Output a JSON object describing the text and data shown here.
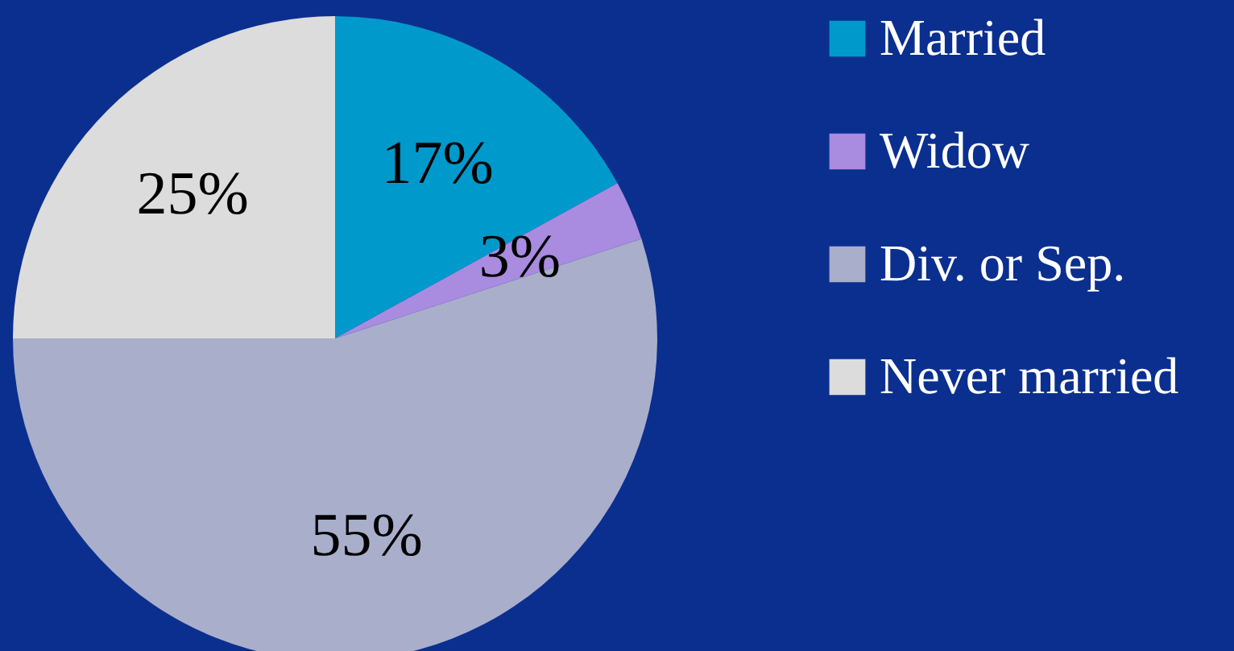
{
  "chart_data": {
    "type": "pie",
    "categories": [
      "Married",
      "Widow",
      "Div. or Sep.",
      "Never married"
    ],
    "values": [
      17,
      3,
      55,
      25
    ],
    "value_labels": [
      "17%",
      "3%",
      "55%",
      "25%"
    ],
    "colors": [
      "#0099cc",
      "#a98be0",
      "#a9aecb",
      "#dcdcdc"
    ],
    "legend": "right"
  }
}
